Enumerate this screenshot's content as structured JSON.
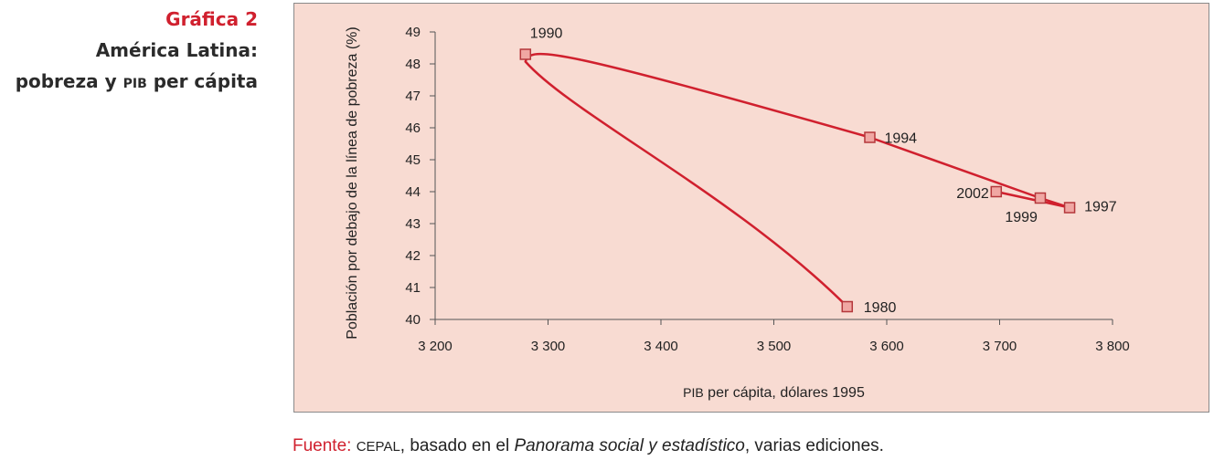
{
  "header": {
    "label": "Gráfica 2",
    "title": "América Latina:",
    "subtitle_pre": "pobreza y",
    "subtitle_sc": "PIB",
    "subtitle_post": "per cápita"
  },
  "chart_data": {
    "type": "line",
    "title": "América Latina: pobreza y PIB per cápita",
    "xlabel": "PIB per cápita, dólares 1995",
    "ylabel": "Población por debajo de la línea de pobreza (%)",
    "xlim": [
      3200,
      3800
    ],
    "ylim": [
      40,
      49
    ],
    "xticks": [
      3200,
      3300,
      3400,
      3500,
      3600,
      3700,
      3800
    ],
    "xtick_labels": [
      "3 200",
      "3 300",
      "3 400",
      "3 500",
      "3 600",
      "3 700",
      "3 800"
    ],
    "yticks": [
      40,
      41,
      42,
      43,
      44,
      45,
      46,
      47,
      48,
      49
    ],
    "points": [
      {
        "label": "1980",
        "x": 3565,
        "y": 40.4
      },
      {
        "label": "1990",
        "x": 3280,
        "y": 48.3
      },
      {
        "label": "1994",
        "x": 3585,
        "y": 45.7
      },
      {
        "label": "1997",
        "x": 3762,
        "y": 43.5
      },
      {
        "label": "1999",
        "x": 3736,
        "y": 43.8
      },
      {
        "label": "2002",
        "x": 3697,
        "y": 44.0
      }
    ],
    "line_color": "#d0202e",
    "marker_fill": "#f0a7a3",
    "grid": false
  },
  "source": {
    "label": "Fuente:",
    "org": "CEPAL",
    "text_pre": ", basado en el ",
    "title": "Panorama social y estadístico",
    "text_post": ", varias ediciones."
  },
  "colors": {
    "accent": "#d0202e",
    "chart_bg": "#f8dbd2"
  }
}
